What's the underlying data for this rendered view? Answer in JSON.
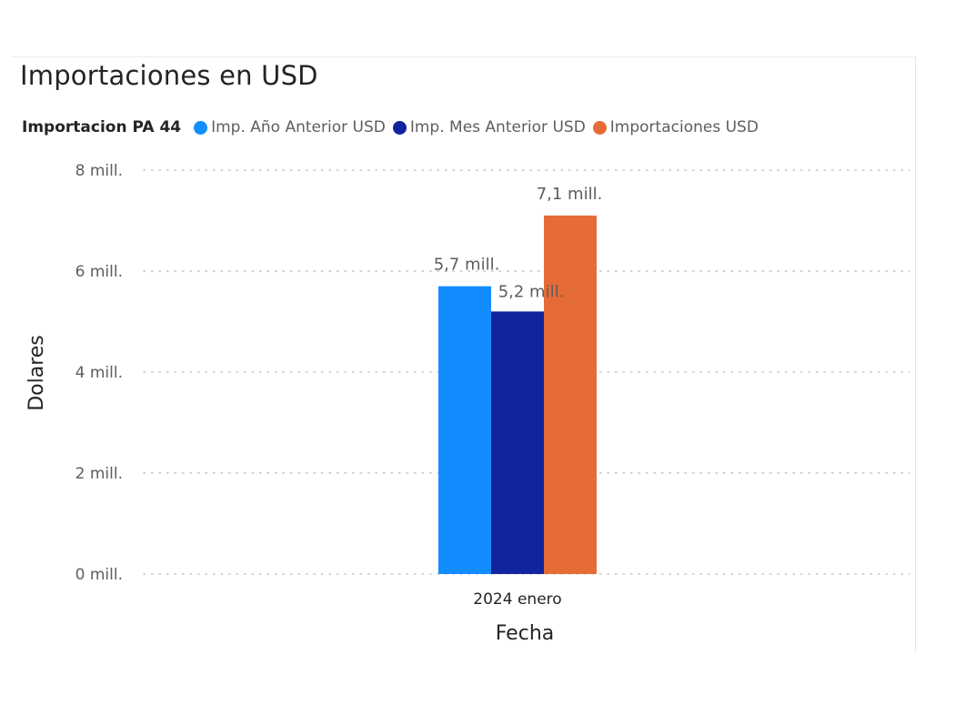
{
  "chart_data": {
    "type": "bar",
    "title": "Importaciones en USD",
    "legend_title": "Importacion PA 44",
    "legend_position": "top-left",
    "xlabel": "Fecha",
    "ylabel": "Dolares",
    "categories": [
      "2024 enero"
    ],
    "series": [
      {
        "name": "Imp. Año Anterior USD",
        "color": "#118dff",
        "values": [
          5.7
        ],
        "labels": [
          "5,7 mill."
        ]
      },
      {
        "name": "Imp. Mes Anterior USD",
        "color": "#12239e",
        "values": [
          5.2
        ],
        "labels": [
          "5,2 mill."
        ]
      },
      {
        "name": "Importaciones USD",
        "color": "#e66c37",
        "values": [
          7.1
        ],
        "labels": [
          "7,1 mill."
        ]
      }
    ],
    "ylim": [
      0,
      8
    ],
    "yticks": [
      0,
      2,
      4,
      6,
      8
    ],
    "ytick_labels": [
      "0 mill.",
      "2 mill.",
      "4 mill.",
      "6 mill.",
      "8 mill."
    ],
    "y_unit": "millones USD",
    "grid": true
  }
}
